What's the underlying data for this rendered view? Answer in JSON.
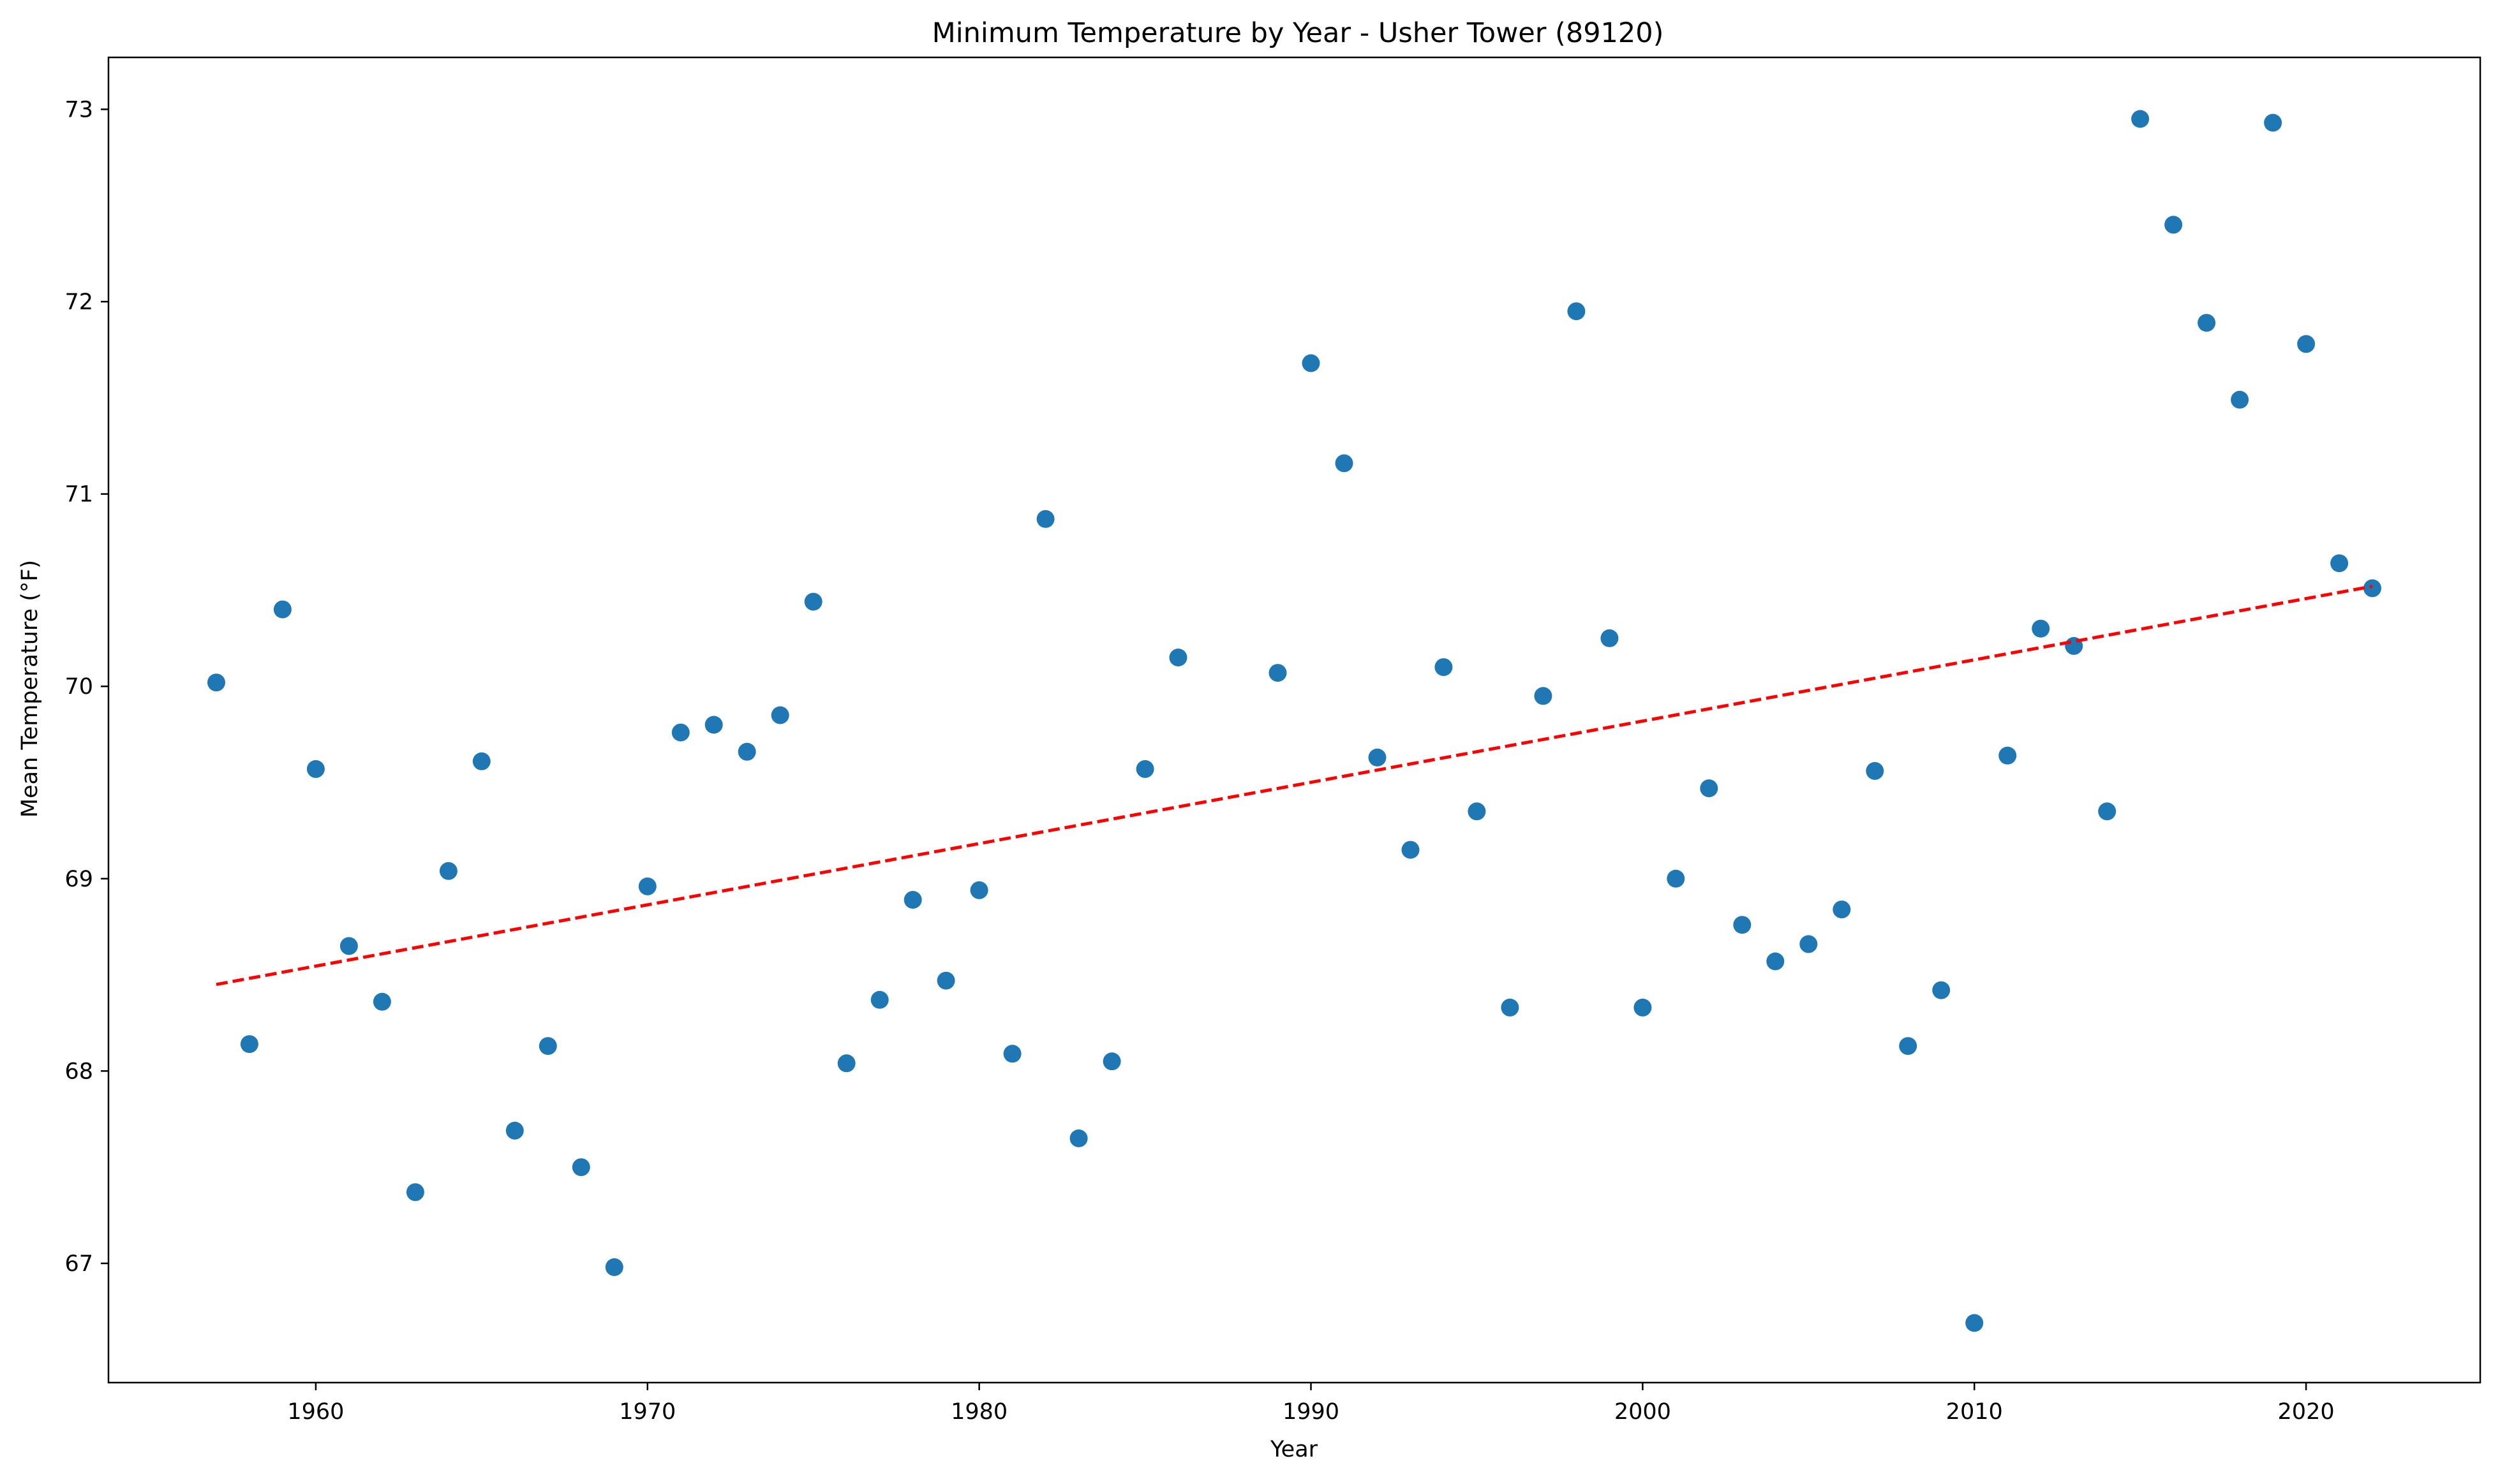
{
  "chart_data": {
    "type": "scatter",
    "title": "Minimum Temperature by Year - Usher Tower (89120)",
    "xlabel": "Year",
    "ylabel": "Mean Temperature (°F)",
    "xlim": [
      1953.75,
      2025.25
    ],
    "ylim": [
      66.38,
      73.27
    ],
    "xticks": [
      1960,
      1970,
      1980,
      1990,
      2000,
      2010,
      2020
    ],
    "yticks": [
      67,
      68,
      69,
      70,
      71,
      72,
      73
    ],
    "grid": false,
    "colors": {
      "points": "#1f77b4",
      "trend": "#ff0000"
    },
    "points": [
      {
        "x": 1957,
        "y": 70.02
      },
      {
        "x": 1958,
        "y": 68.14
      },
      {
        "x": 1959,
        "y": 70.4
      },
      {
        "x": 1960,
        "y": 69.57
      },
      {
        "x": 1961,
        "y": 68.65
      },
      {
        "x": 1962,
        "y": 68.36
      },
      {
        "x": 1963,
        "y": 67.37
      },
      {
        "x": 1964,
        "y": 69.04
      },
      {
        "x": 1965,
        "y": 69.61
      },
      {
        "x": 1966,
        "y": 67.69
      },
      {
        "x": 1967,
        "y": 68.13
      },
      {
        "x": 1968,
        "y": 67.5
      },
      {
        "x": 1969,
        "y": 66.98
      },
      {
        "x": 1970,
        "y": 68.96
      },
      {
        "x": 1971,
        "y": 69.76
      },
      {
        "x": 1972,
        "y": 69.8
      },
      {
        "x": 1973,
        "y": 69.66
      },
      {
        "x": 1974,
        "y": 69.85
      },
      {
        "x": 1975,
        "y": 70.44
      },
      {
        "x": 1976,
        "y": 68.04
      },
      {
        "x": 1977,
        "y": 68.37
      },
      {
        "x": 1978,
        "y": 68.89
      },
      {
        "x": 1979,
        "y": 68.47
      },
      {
        "x": 1980,
        "y": 68.94
      },
      {
        "x": 1981,
        "y": 68.09
      },
      {
        "x": 1982,
        "y": 70.87
      },
      {
        "x": 1983,
        "y": 67.65
      },
      {
        "x": 1984,
        "y": 68.05
      },
      {
        "x": 1985,
        "y": 69.57
      },
      {
        "x": 1986,
        "y": 70.15
      },
      {
        "x": 1989,
        "y": 70.07
      },
      {
        "x": 1990,
        "y": 71.68
      },
      {
        "x": 1991,
        "y": 71.16
      },
      {
        "x": 1992,
        "y": 69.63
      },
      {
        "x": 1993,
        "y": 69.15
      },
      {
        "x": 1994,
        "y": 70.1
      },
      {
        "x": 1995,
        "y": 69.35
      },
      {
        "x": 1996,
        "y": 68.33
      },
      {
        "x": 1997,
        "y": 69.95
      },
      {
        "x": 1998,
        "y": 71.95
      },
      {
        "x": 1999,
        "y": 70.25
      },
      {
        "x": 2000,
        "y": 68.33
      },
      {
        "x": 2001,
        "y": 69.0
      },
      {
        "x": 2002,
        "y": 69.47
      },
      {
        "x": 2003,
        "y": 68.76
      },
      {
        "x": 2004,
        "y": 68.57
      },
      {
        "x": 2005,
        "y": 68.66
      },
      {
        "x": 2006,
        "y": 68.84
      },
      {
        "x": 2007,
        "y": 69.56
      },
      {
        "x": 2008,
        "y": 68.13
      },
      {
        "x": 2009,
        "y": 68.42
      },
      {
        "x": 2010,
        "y": 66.69
      },
      {
        "x": 2011,
        "y": 69.64
      },
      {
        "x": 2012,
        "y": 70.3
      },
      {
        "x": 2013,
        "y": 70.21
      },
      {
        "x": 2014,
        "y": 69.35
      },
      {
        "x": 2015,
        "y": 72.95
      },
      {
        "x": 2016,
        "y": 72.4
      },
      {
        "x": 2017,
        "y": 71.89
      },
      {
        "x": 2018,
        "y": 71.49
      },
      {
        "x": 2019,
        "y": 72.93
      },
      {
        "x": 2020,
        "y": 71.78
      },
      {
        "x": 2021,
        "y": 70.64
      },
      {
        "x": 2022,
        "y": 70.51
      }
    ],
    "trend_line": {
      "style": "dashed",
      "x": [
        1957,
        2022
      ],
      "y": [
        68.45,
        70.52
      ]
    }
  }
}
